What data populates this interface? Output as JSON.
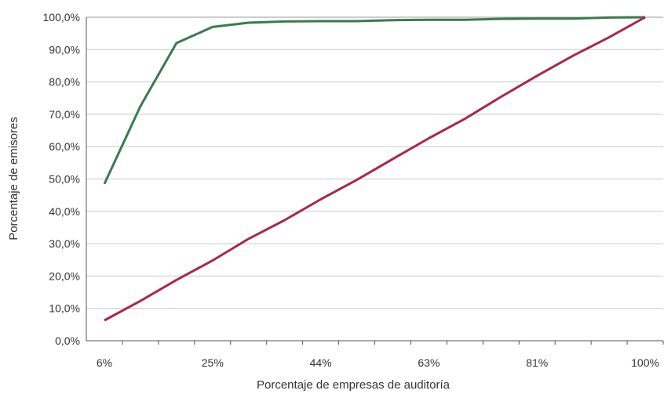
{
  "chart_data": {
    "type": "line",
    "xlabel": "Porcentaje de empresas de auditoría",
    "ylabel": "Porcentaje de emisores",
    "x_tick_labels": [
      "6%",
      "25%",
      "44%",
      "63%",
      "81%",
      "100%"
    ],
    "y_tick_labels": [
      "0,0%",
      "10,0%",
      "20,0%",
      "30,0%",
      "40,0%",
      "50,0%",
      "60,0%",
      "70,0%",
      "80,0%",
      "90,0%",
      "100,0%"
    ],
    "ylim": [
      0,
      100
    ],
    "grid": "horizontal",
    "x": [
      6.25,
      12.5,
      18.75,
      25,
      31.25,
      37.5,
      43.75,
      50,
      56.25,
      62.5,
      68.75,
      75,
      81.25,
      87.5,
      93.75,
      100
    ],
    "series": [
      {
        "color": "#3b7a4e",
        "values": [
          48.5,
          72.5,
          92,
          97,
          98.3,
          98.7,
          98.8,
          98.8,
          99.1,
          99.2,
          99.2,
          99.5,
          99.6,
          99.6,
          99.9,
          100
        ]
      },
      {
        "color": "#a8284b",
        "values": [
          6.3,
          12.3,
          18.8,
          24.8,
          31.5,
          37.3,
          43.7,
          49.7,
          56.2,
          62.6,
          68.6,
          75.4,
          81.9,
          88.1,
          93.8,
          100
        ]
      }
    ]
  }
}
